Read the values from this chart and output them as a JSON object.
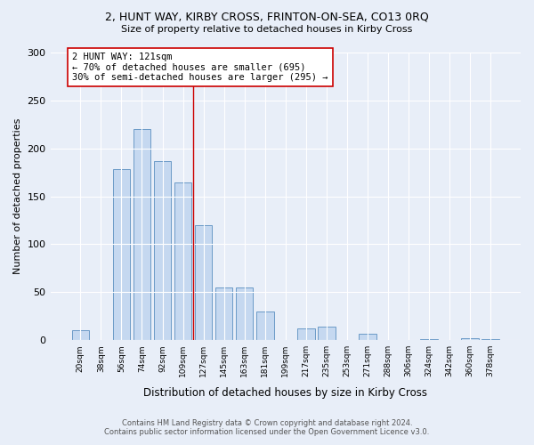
{
  "title_line1": "2, HUNT WAY, KIRBY CROSS, FRINTON-ON-SEA, CO13 0RQ",
  "title_line2": "Size of property relative to detached houses in Kirby Cross",
  "xlabel": "Distribution of detached houses by size in Kirby Cross",
  "ylabel": "Number of detached properties",
  "bin_labels": [
    "20sqm",
    "38sqm",
    "56sqm",
    "74sqm",
    "92sqm",
    "109sqm",
    "127sqm",
    "145sqm",
    "163sqm",
    "181sqm",
    "199sqm",
    "217sqm",
    "235sqm",
    "253sqm",
    "271sqm",
    "288sqm",
    "306sqm",
    "324sqm",
    "342sqm",
    "360sqm",
    "378sqm"
  ],
  "bar_values": [
    10,
    0,
    178,
    220,
    187,
    164,
    120,
    55,
    55,
    30,
    0,
    12,
    14,
    0,
    7,
    0,
    0,
    1,
    0,
    2,
    1
  ],
  "bar_color": "#c5d8f0",
  "bar_edge_color": "#5a8fc0",
  "vline_x": 5.5,
  "vline_color": "#cc0000",
  "annotation_text": "2 HUNT WAY: 121sqm\n← 70% of detached houses are smaller (695)\n30% of semi-detached houses are larger (295) →",
  "annotation_box_color": "#ffffff",
  "annotation_box_edge": "#cc0000",
  "ylim": [
    0,
    300
  ],
  "yticks": [
    0,
    50,
    100,
    150,
    200,
    250,
    300
  ],
  "footer_line1": "Contains HM Land Registry data © Crown copyright and database right 2024.",
  "footer_line2": "Contains public sector information licensed under the Open Government Licence v3.0.",
  "bg_color": "#e8eef8",
  "plot_bg_color": "#e8eef8"
}
